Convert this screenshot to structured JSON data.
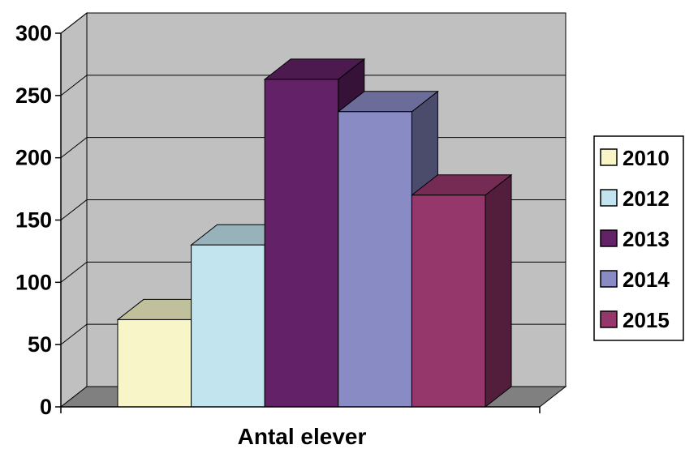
{
  "chart_data": {
    "type": "bar",
    "categories": [
      "Antal elever"
    ],
    "series": [
      {
        "name": "2010",
        "values": [
          70
        ],
        "color": "#f8f6c8"
      },
      {
        "name": "2012",
        "values": [
          130
        ],
        "color": "#c2e4ee"
      },
      {
        "name": "2013",
        "values": [
          263
        ],
        "color": "#632167"
      },
      {
        "name": "2014",
        "values": [
          237
        ],
        "color": "#898bc5"
      },
      {
        "name": "2015",
        "values": [
          170
        ],
        "color": "#96376c"
      }
    ],
    "xlabel": "Antal elever",
    "ylabel": "",
    "ylim": [
      0,
      300
    ],
    "yticks": [
      0,
      50,
      100,
      150,
      200,
      250,
      300
    ],
    "ytick_labels": [
      "0",
      "50",
      "100",
      "150",
      "200",
      "250",
      "300"
    ],
    "grid": true,
    "legend": "right",
    "style": "3d-clustered",
    "wall_color": "#c0c0c0",
    "floor_color": "#808080"
  }
}
